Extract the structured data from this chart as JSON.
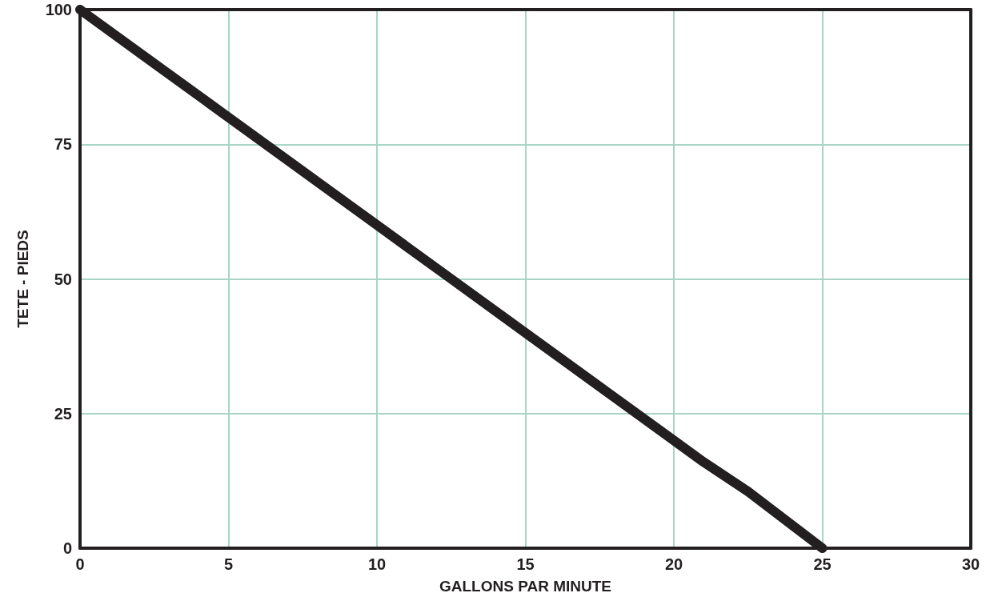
{
  "chart_data": {
    "type": "line",
    "xlabel": "GALLONS PAR MINUTE",
    "ylabel": "TETE - PIEDS",
    "x": [
      0,
      2.5,
      5,
      7.5,
      10,
      12.5,
      15,
      17.5,
      20,
      21,
      22.5,
      25
    ],
    "series": [
      {
        "color": "#231f20",
        "values": [
          100,
          90,
          80,
          70,
          60,
          50,
          40,
          30,
          20,
          16,
          10.5,
          0
        ]
      }
    ],
    "xlim": [
      0,
      30
    ],
    "xticks": [
      0,
      5,
      10,
      15,
      20,
      25,
      30
    ],
    "ylim": [
      0,
      100
    ],
    "yticks": [
      0,
      25,
      50,
      75,
      100
    ],
    "grid": true,
    "line_style": "solid"
  }
}
